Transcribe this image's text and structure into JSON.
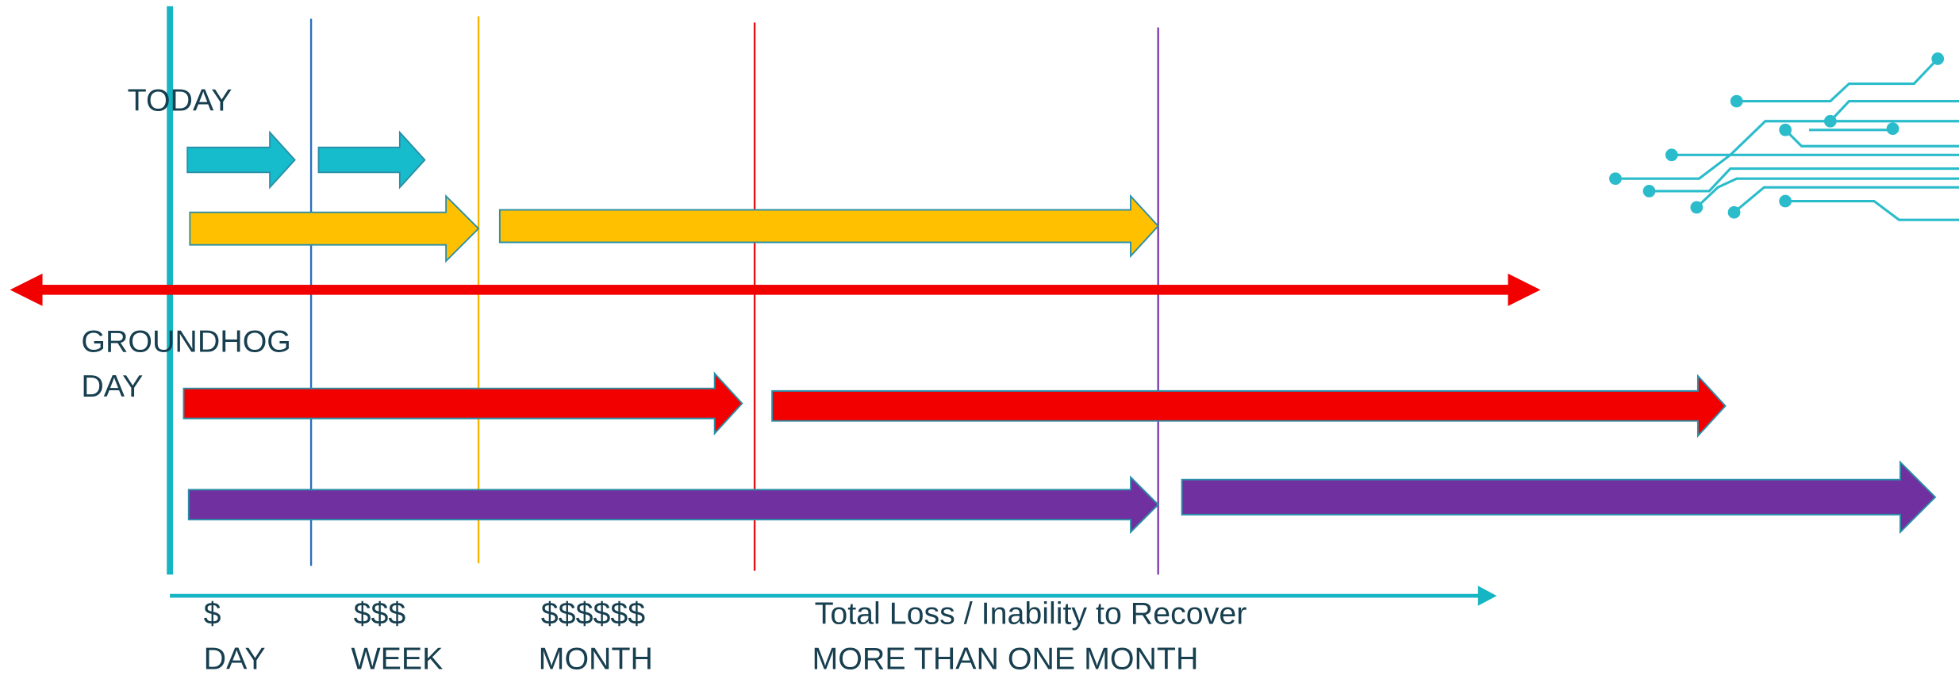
{
  "top_label": "TODAY",
  "middle_label": [
    "GROUNDHOG",
    "DAY"
  ],
  "cost_labels": [
    "$",
    "$$$",
    "$$$$$$",
    "Total Loss / Inability to Recover"
  ],
  "period_labels": [
    "DAY",
    "WEEK",
    "MONTH",
    "MORE THAN ONE MONTH"
  ]
}
